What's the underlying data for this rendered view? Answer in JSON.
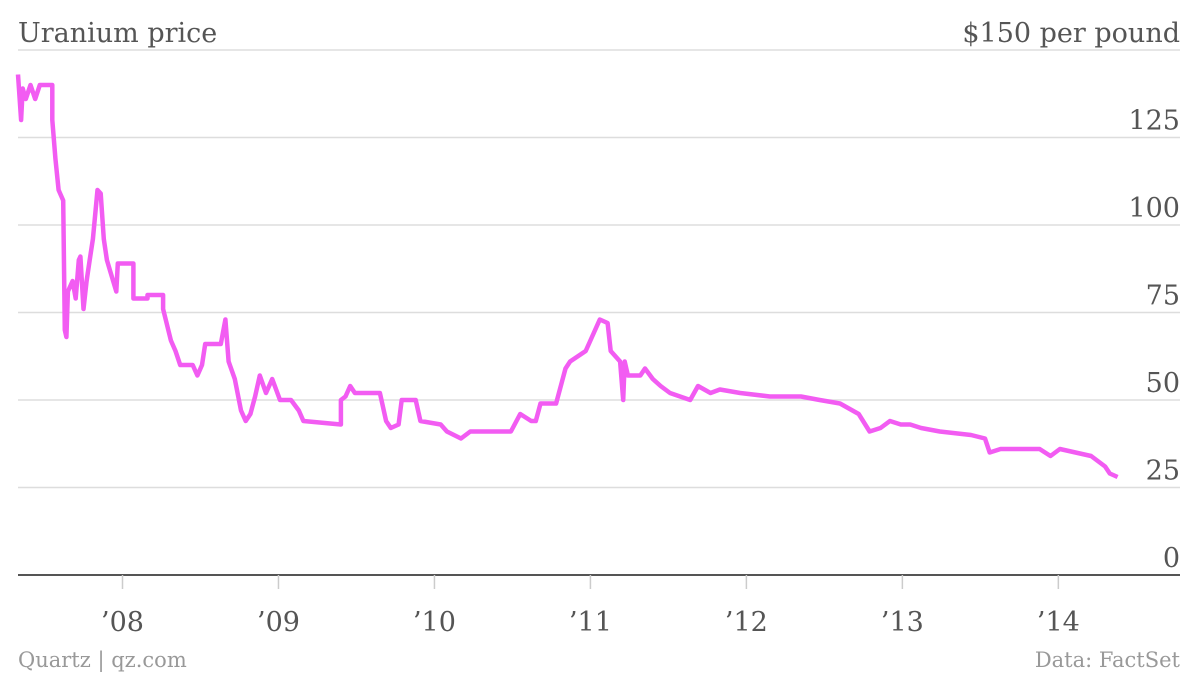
{
  "chart_data": {
    "type": "line",
    "title": "Uranium price",
    "x": [
      2007.33,
      2007.35,
      2007.36,
      2007.38,
      2007.41,
      2007.44,
      2007.47,
      2007.55,
      2007.55,
      2007.57,
      2007.59,
      2007.62,
      2007.63,
      2007.64,
      2007.65,
      2007.68,
      2007.7,
      2007.72,
      2007.73,
      2007.75,
      2007.77,
      2007.79,
      2007.81,
      2007.84,
      2007.86,
      2007.88,
      2007.9,
      2007.92,
      2007.96,
      2007.97,
      2008.07,
      2008.07,
      2008.16,
      2008.16,
      2008.26,
      2008.26,
      2008.31,
      2008.34,
      2008.37,
      2008.45,
      2008.48,
      2008.51,
      2008.53,
      2008.63,
      2008.66,
      2008.68,
      2008.72,
      2008.76,
      2008.79,
      2008.82,
      2008.85,
      2008.88,
      2008.92,
      2008.96,
      2009.01,
      2009.08,
      2009.13,
      2009.16,
      2009.4,
      2009.4,
      2009.43,
      2009.46,
      2009.49,
      2009.65,
      2009.69,
      2009.72,
      2009.77,
      2009.79,
      2009.88,
      2009.91,
      2010.04,
      2010.08,
      2010.17,
      2010.23,
      2010.36,
      2010.49,
      2010.55,
      2010.62,
      2010.65,
      2010.68,
      2010.78,
      2010.84,
      2010.87,
      2010.97,
      2011.0,
      2011.06,
      2011.11,
      2011.13,
      2011.19,
      2011.21,
      2011.22,
      2011.24,
      2011.32,
      2011.35,
      2011.4,
      2011.45,
      2011.51,
      2011.64,
      2011.69,
      2011.77,
      2011.83,
      2011.96,
      2012.15,
      2012.35,
      2012.47,
      2012.6,
      2012.72,
      2012.79,
      2012.86,
      2012.92,
      2012.99,
      2013.05,
      2013.12,
      2013.24,
      2013.44,
      2013.53,
      2013.56,
      2013.63,
      2013.82,
      2013.88,
      2013.95,
      2014.01,
      2014.21,
      2014.3,
      2014.33,
      2014.38
    ],
    "values": [
      143,
      130,
      139,
      136,
      140,
      136,
      140,
      140,
      130,
      119,
      110,
      107,
      70,
      68,
      81,
      84,
      79,
      90,
      91,
      76,
      84,
      90,
      96,
      110,
      109,
      96,
      90,
      87,
      81,
      89,
      89,
      79,
      79,
      80,
      80,
      76,
      67,
      64,
      60,
      60,
      57,
      60,
      66,
      66,
      73,
      61,
      56,
      47,
      44,
      46,
      51,
      57,
      52,
      56,
      50,
      50,
      47,
      44,
      43,
      50,
      51,
      54,
      52,
      52,
      44,
      42,
      43,
      50,
      50,
      44,
      43,
      41,
      39,
      41,
      41,
      41,
      46,
      44,
      44,
      49,
      49,
      59,
      61,
      64,
      67,
      73,
      72,
      64,
      61,
      50,
      61,
      57,
      57,
      59,
      56,
      54,
      52,
      50,
      54,
      52,
      53,
      52,
      51,
      51,
      50,
      49,
      46,
      41,
      42,
      44,
      43,
      43,
      42,
      41,
      40,
      39,
      35,
      36,
      36,
      36,
      34,
      36,
      34,
      31,
      29,
      28
    ],
    "color": "#f25cf2",
    "xlim": [
      2007.33,
      2014.78
    ],
    "xticks": [
      {
        "value": 2008,
        "label": "’08"
      },
      {
        "value": 2009,
        "label": "’09"
      },
      {
        "value": 2010,
        "label": "’10"
      },
      {
        "value": 2011,
        "label": "’11"
      },
      {
        "value": 2012,
        "label": "’12"
      },
      {
        "value": 2013,
        "label": "’13"
      },
      {
        "value": 2014,
        "label": "’14"
      }
    ],
    "ylim": [
      0,
      150
    ],
    "yticks": [
      0,
      25,
      50,
      75,
      100,
      125,
      {
        "value": 150,
        "label": "$150 per pound"
      }
    ],
    "grid": true,
    "credit": "Quartz | qz.com",
    "source": "Data: FactSet"
  }
}
